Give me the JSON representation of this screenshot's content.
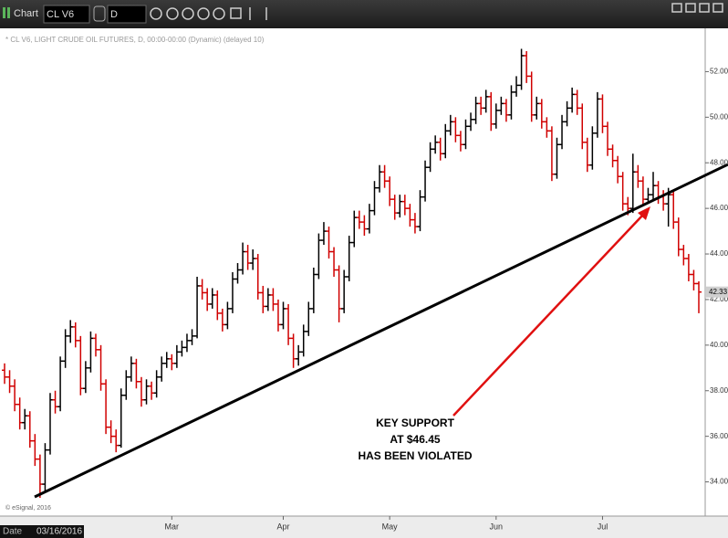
{
  "toolbar": {
    "app": "Chart",
    "symbol": "CL V6",
    "interval": "D"
  },
  "footer": {
    "date_label": "Date",
    "date": "03/16/2016"
  },
  "chart_data": {
    "type": "ohlc",
    "legend_text": "* CL V6, LIGHT CRUDE OIL FUTURES, D, 00:00-00:00 (Dynamic) (delayed 10)",
    "credit": "© eSignal, 2016",
    "annotation": [
      "KEY SUPPORT",
      "AT $46.45",
      "HAS BEEN VIOLATED"
    ],
    "up_color": "#000000",
    "down_color": "#d00000",
    "ylim": [
      32.5,
      53.9
    ],
    "yticks": [
      {
        "value": 34,
        "label": "34.00"
      },
      {
        "value": 36,
        "label": "36.00"
      },
      {
        "value": 38,
        "label": "38.00"
      },
      {
        "value": 40,
        "label": "40.00"
      },
      {
        "value": 42,
        "label": "42.00"
      },
      {
        "value": 44,
        "label": "44.00"
      },
      {
        "value": 46,
        "label": "46.00"
      },
      {
        "value": 48,
        "label": "48.00"
      },
      {
        "value": 50,
        "label": "50.00"
      },
      {
        "value": 52,
        "label": "52.00"
      }
    ],
    "last_price": 42.33,
    "categories": [
      null,
      null,
      null,
      null,
      null,
      null,
      null,
      null,
      null,
      null,
      null,
      null,
      null,
      null,
      null,
      null,
      null,
      null,
      null,
      null,
      null,
      null,
      null,
      null,
      null,
      null,
      null,
      null,
      null,
      null,
      null,
      null,
      null,
      "Mar",
      null,
      null,
      null,
      null,
      null,
      null,
      null,
      null,
      null,
      null,
      null,
      null,
      null,
      null,
      null,
      null,
      null,
      null,
      null,
      null,
      null,
      "Apr",
      null,
      null,
      null,
      null,
      null,
      null,
      null,
      null,
      null,
      null,
      null,
      null,
      null,
      null,
      null,
      null,
      null,
      null,
      null,
      null,
      "May",
      null,
      null,
      null,
      null,
      null,
      null,
      null,
      null,
      null,
      null,
      null,
      null,
      null,
      null,
      null,
      null,
      null,
      null,
      null,
      null,
      "Jun",
      null,
      null,
      null,
      null,
      null,
      null,
      null,
      null,
      null,
      null,
      null,
      null,
      null,
      null,
      null,
      null,
      null,
      null,
      null,
      null,
      "Jul",
      null,
      null,
      null,
      null,
      null,
      null,
      null,
      null,
      null,
      null,
      null,
      null,
      null,
      null,
      null,
      null,
      null,
      null,
      null
    ],
    "ohlc": [
      [
        38.9,
        39.2,
        38.3,
        38.6
      ],
      [
        38.6,
        38.9,
        37.9,
        38.2
      ],
      [
        38.2,
        38.5,
        37.1,
        37.4
      ],
      [
        37.4,
        37.7,
        36.3,
        36.6
      ],
      [
        36.6,
        37.2,
        36.3,
        36.9
      ],
      [
        36.9,
        37.1,
        35.5,
        35.8
      ],
      [
        35.8,
        36.1,
        34.7,
        35.0
      ],
      [
        35.0,
        35.2,
        33.3,
        33.9
      ],
      [
        33.9,
        35.7,
        33.6,
        35.4
      ],
      [
        35.4,
        37.9,
        35.2,
        37.6
      ],
      [
        37.6,
        38.0,
        37.0,
        37.3
      ],
      [
        37.3,
        39.5,
        37.1,
        39.3
      ],
      [
        39.3,
        40.7,
        39.0,
        40.4
      ],
      [
        40.4,
        41.1,
        40.1,
        40.8
      ],
      [
        40.8,
        41.0,
        39.9,
        40.2
      ],
      [
        40.2,
        40.4,
        37.8,
        38.1
      ],
      [
        38.1,
        39.3,
        37.9,
        39.0
      ],
      [
        39.0,
        40.6,
        38.8,
        40.3
      ],
      [
        40.3,
        40.5,
        39.5,
        39.8
      ],
      [
        39.8,
        40.0,
        38.0,
        38.3
      ],
      [
        38.3,
        38.5,
        36.1,
        36.4
      ],
      [
        36.4,
        36.7,
        35.7,
        36.0
      ],
      [
        36.0,
        36.3,
        35.3,
        35.6
      ],
      [
        35.6,
        38.1,
        35.5,
        37.8
      ],
      [
        37.8,
        38.9,
        37.6,
        38.6
      ],
      [
        38.6,
        39.5,
        38.4,
        39.2
      ],
      [
        39.2,
        39.4,
        38.1,
        38.4
      ],
      [
        38.4,
        38.6,
        37.3,
        37.6
      ],
      [
        37.6,
        38.5,
        37.4,
        38.2
      ],
      [
        38.2,
        38.4,
        37.6,
        37.9
      ],
      [
        37.9,
        38.9,
        37.7,
        38.6
      ],
      [
        38.6,
        39.5,
        38.4,
        39.2
      ],
      [
        39.2,
        39.7,
        39.0,
        39.4
      ],
      [
        39.4,
        39.6,
        38.9,
        39.2
      ],
      [
        39.2,
        40.0,
        39.0,
        39.7
      ],
      [
        39.7,
        40.2,
        39.5,
        39.9
      ],
      [
        39.9,
        40.5,
        39.7,
        40.2
      ],
      [
        40.2,
        40.7,
        40.0,
        40.4
      ],
      [
        40.4,
        43.0,
        40.3,
        42.6
      ],
      [
        42.6,
        42.9,
        42.0,
        42.3
      ],
      [
        42.3,
        42.5,
        41.5,
        41.8
      ],
      [
        41.8,
        42.5,
        41.6,
        42.2
      ],
      [
        42.2,
        42.4,
        41.1,
        41.4
      ],
      [
        41.4,
        41.6,
        40.6,
        40.9
      ],
      [
        40.9,
        41.9,
        40.7,
        41.6
      ],
      [
        41.6,
        43.2,
        41.4,
        42.9
      ],
      [
        42.9,
        43.6,
        42.7,
        43.3
      ],
      [
        43.3,
        44.5,
        43.1,
        44.1
      ],
      [
        44.1,
        44.4,
        43.3,
        43.6
      ],
      [
        43.6,
        44.2,
        43.3,
        43.8
      ],
      [
        43.8,
        44.0,
        42.0,
        42.3
      ],
      [
        42.3,
        42.6,
        41.4,
        41.7
      ],
      [
        41.7,
        42.5,
        41.5,
        42.2
      ],
      [
        42.2,
        42.5,
        41.5,
        41.8
      ],
      [
        41.8,
        42.0,
        40.6,
        40.9
      ],
      [
        40.9,
        41.9,
        40.7,
        41.6
      ],
      [
        41.6,
        41.8,
        40.0,
        40.3
      ],
      [
        40.3,
        40.5,
        39.0,
        39.4
      ],
      [
        39.4,
        40.0,
        39.1,
        39.7
      ],
      [
        39.7,
        40.9,
        39.5,
        40.6
      ],
      [
        40.6,
        41.9,
        40.4,
        41.6
      ],
      [
        41.6,
        43.4,
        41.4,
        43.1
      ],
      [
        43.1,
        44.9,
        42.9,
        44.6
      ],
      [
        44.6,
        45.4,
        44.4,
        45.0
      ],
      [
        45.0,
        45.2,
        43.8,
        44.1
      ],
      [
        44.1,
        44.3,
        43.0,
        43.3
      ],
      [
        43.3,
        43.5,
        41.0,
        41.6
      ],
      [
        41.6,
        43.3,
        41.4,
        43.0
      ],
      [
        43.0,
        44.8,
        42.8,
        44.5
      ],
      [
        44.5,
        45.9,
        44.3,
        45.6
      ],
      [
        45.6,
        45.9,
        45.1,
        45.4
      ],
      [
        45.4,
        45.7,
        44.8,
        45.1
      ],
      [
        45.1,
        46.2,
        44.9,
        45.9
      ],
      [
        45.9,
        47.2,
        45.7,
        46.9
      ],
      [
        46.9,
        47.9,
        46.7,
        47.6
      ],
      [
        47.6,
        47.9,
        46.9,
        47.2
      ],
      [
        47.2,
        47.4,
        46.1,
        46.4
      ],
      [
        46.4,
        46.6,
        45.5,
        45.8
      ],
      [
        45.8,
        46.6,
        45.6,
        46.3
      ],
      [
        46.3,
        46.6,
        45.7,
        46.0
      ],
      [
        46.0,
        46.2,
        45.2,
        45.5
      ],
      [
        45.5,
        45.8,
        44.9,
        45.2
      ],
      [
        45.2,
        46.8,
        45.0,
        46.5
      ],
      [
        46.5,
        48.1,
        46.3,
        47.8
      ],
      [
        47.8,
        48.9,
        47.6,
        48.6
      ],
      [
        48.6,
        49.2,
        48.4,
        48.9
      ],
      [
        48.9,
        49.1,
        48.1,
        48.4
      ],
      [
        48.4,
        49.7,
        48.2,
        49.4
      ],
      [
        49.4,
        50.1,
        49.2,
        49.8
      ],
      [
        49.8,
        50.0,
        48.9,
        49.2
      ],
      [
        49.2,
        49.4,
        48.5,
        48.8
      ],
      [
        48.8,
        49.9,
        48.6,
        49.6
      ],
      [
        49.6,
        50.2,
        49.4,
        49.9
      ],
      [
        49.9,
        50.9,
        49.7,
        50.6
      ],
      [
        50.6,
        50.9,
        50.1,
        50.4
      ],
      [
        50.4,
        51.2,
        50.2,
        50.9
      ],
      [
        50.9,
        51.1,
        49.4,
        49.7
      ],
      [
        49.7,
        50.6,
        49.5,
        50.3
      ],
      [
        50.3,
        50.9,
        50.1,
        50.6
      ],
      [
        50.6,
        50.8,
        49.8,
        50.1
      ],
      [
        50.1,
        51.4,
        49.9,
        51.1
      ],
      [
        51.1,
        51.8,
        50.9,
        51.4
      ],
      [
        51.4,
        53.0,
        51.2,
        52.7
      ],
      [
        52.7,
        52.9,
        51.5,
        51.8
      ],
      [
        51.8,
        52.0,
        49.8,
        50.1
      ],
      [
        50.1,
        50.9,
        49.9,
        50.6
      ],
      [
        50.6,
        50.8,
        49.5,
        49.8
      ],
      [
        49.8,
        50.0,
        49.1,
        49.4
      ],
      [
        49.4,
        49.6,
        47.2,
        47.5
      ],
      [
        47.5,
        49.1,
        47.3,
        48.8
      ],
      [
        48.8,
        50.1,
        48.6,
        49.8
      ],
      [
        49.8,
        50.7,
        49.6,
        50.4
      ],
      [
        50.4,
        51.3,
        50.2,
        51.0
      ],
      [
        51.0,
        51.2,
        50.1,
        50.4
      ],
      [
        50.4,
        50.6,
        48.6,
        48.9
      ],
      [
        48.9,
        49.1,
        47.6,
        47.9
      ],
      [
        47.9,
        49.6,
        47.7,
        49.3
      ],
      [
        49.3,
        51.1,
        49.1,
        50.8
      ],
      [
        50.8,
        51.0,
        49.3,
        49.6
      ],
      [
        49.6,
        49.8,
        48.3,
        48.6
      ],
      [
        48.6,
        48.8,
        47.8,
        48.1
      ],
      [
        48.1,
        48.3,
        47.1,
        47.4
      ],
      [
        47.4,
        47.6,
        45.9,
        46.2
      ],
      [
        46.2,
        46.5,
        45.7,
        46.0
      ],
      [
        46.0,
        48.4,
        45.8,
        47.6
      ],
      [
        47.6,
        47.9,
        46.9,
        47.2
      ],
      [
        47.2,
        47.4,
        46.1,
        46.4
      ],
      [
        46.4,
        46.9,
        46.2,
        46.6
      ],
      [
        46.6,
        47.6,
        46.4,
        47.0
      ],
      [
        47.0,
        47.2,
        46.2,
        46.5
      ],
      [
        46.5,
        46.8,
        45.9,
        46.2
      ],
      [
        46.2,
        46.9,
        45.2,
        46.6
      ],
      [
        46.6,
        46.8,
        45.1,
        45.4
      ],
      [
        45.4,
        45.6,
        43.9,
        44.2
      ],
      [
        44.2,
        44.4,
        43.5,
        43.8
      ],
      [
        43.8,
        44.0,
        42.8,
        43.1
      ],
      [
        43.1,
        43.3,
        42.4,
        42.7
      ],
      [
        42.7,
        42.8,
        41.4,
        42.33
      ]
    ]
  }
}
